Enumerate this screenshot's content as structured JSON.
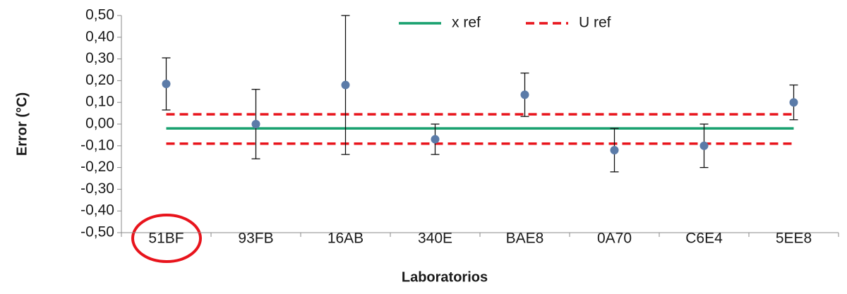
{
  "chart_data": {
    "type": "errorbar",
    "x_label": "Laboratorios",
    "y_label": "Error (°C)",
    "categories": [
      "51BF",
      "93FB",
      "16AB",
      "340E",
      "BAE8",
      "0A70",
      "C6E4",
      "5EE8"
    ],
    "values": [
      0.185,
      0.0,
      0.18,
      -0.07,
      0.135,
      -0.12,
      -0.1,
      0.1
    ],
    "errors": [
      0.12,
      0.16,
      0.32,
      0.07,
      0.1,
      0.1,
      0.1,
      0.08
    ],
    "color": "#5b7ba8",
    "reference_lines": [
      {
        "name": "x ref",
        "color": "#17a06e",
        "dashed": false,
        "values": [
          -0.02
        ]
      },
      {
        "name": "U ref",
        "color": "#e8141c",
        "dashed": true,
        "values": [
          0.045,
          -0.09
        ]
      }
    ],
    "ylim": [
      -0.5,
      0.5
    ],
    "yticks": [
      {
        "value": -0.5,
        "label": "-0,50"
      },
      {
        "value": -0.4,
        "label": "-0,40"
      },
      {
        "value": -0.3,
        "label": "-0,30"
      },
      {
        "value": -0.2,
        "label": "-0,20"
      },
      {
        "value": -0.1,
        "label": "-0,10"
      },
      {
        "value": 0,
        "label": "0,00"
      },
      {
        "value": 0.1,
        "label": "0,10"
      },
      {
        "value": 0.2,
        "label": "0,20"
      },
      {
        "value": 0.3,
        "label": "0,30"
      },
      {
        "value": 0.4,
        "label": "0,40"
      },
      {
        "value": 0.5,
        "label": "0,50"
      }
    ],
    "grid": false,
    "legend": "top"
  }
}
